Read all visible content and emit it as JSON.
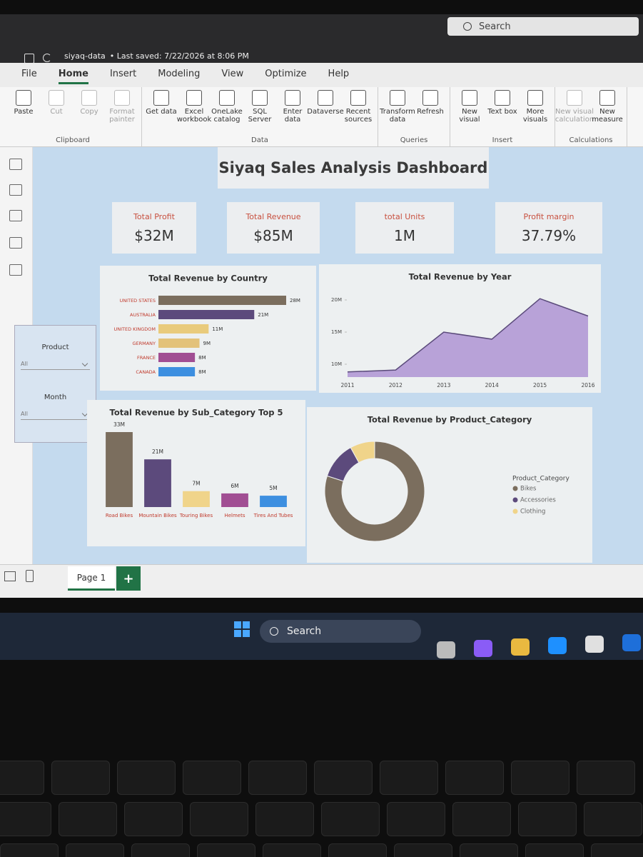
{
  "window": {
    "file_name": "siyaq-data",
    "saved": "• Last saved: 7/22/2026 at 8:06 PM",
    "search": "Search"
  },
  "ribbon": {
    "tabs": [
      "File",
      "Home",
      "Insert",
      "Modeling",
      "View",
      "Optimize",
      "Help"
    ],
    "active_tab": "Home",
    "groups": [
      {
        "label": "Clipboard",
        "buttons": [
          {
            "label": "Paste"
          },
          {
            "label": "Cut",
            "disabled": true
          },
          {
            "label": "Copy",
            "disabled": true
          },
          {
            "label": "Format painter",
            "disabled": true
          }
        ]
      },
      {
        "label": "Data",
        "buttons": [
          {
            "label": "Get data"
          },
          {
            "label": "Excel workbook"
          },
          {
            "label": "OneLake catalog"
          },
          {
            "label": "SQL Server"
          },
          {
            "label": "Enter data"
          },
          {
            "label": "Dataverse"
          },
          {
            "label": "Recent sources"
          }
        ]
      },
      {
        "label": "Queries",
        "buttons": [
          {
            "label": "Transform data"
          },
          {
            "label": "Refresh"
          }
        ]
      },
      {
        "label": "Insert",
        "buttons": [
          {
            "label": "New visual"
          },
          {
            "label": "Text box"
          },
          {
            "label": "More visuals"
          }
        ]
      },
      {
        "label": "Calculations",
        "buttons": [
          {
            "label": "New visual calculation",
            "disabled": true
          },
          {
            "label": "New measure"
          }
        ]
      }
    ]
  },
  "dashboard": {
    "title": "Siyaq Sales Analysis Dashboard",
    "kpis": [
      {
        "label": "Total Profit",
        "value": "$32M"
      },
      {
        "label": "Total Revenue",
        "value": "$85M"
      },
      {
        "label": "total Units",
        "value": "1M"
      },
      {
        "label": "Profit margin",
        "value": "37.79%"
      }
    ],
    "slicers": [
      {
        "label": "Product",
        "value": "All"
      },
      {
        "label": "Month",
        "value": "All"
      }
    ]
  },
  "chart_data": [
    {
      "type": "bar",
      "orientation": "horizontal",
      "title": "Total Revenue by Country",
      "categories": [
        "UNITED STATES",
        "AUSTRALIA",
        "UNITED KINGDOM",
        "GERMANY",
        "FRANCE",
        "CANADA"
      ],
      "values": [
        28,
        21,
        11,
        9,
        8,
        8
      ],
      "value_labels": [
        "28M",
        "21M",
        "11M",
        "9M",
        "8M",
        "8M"
      ],
      "colors": [
        "#7b6e5e",
        "#5c4a7c",
        "#e9cb7c",
        "#e3c27a",
        "#a14e93",
        "#3d8fe0"
      ]
    },
    {
      "type": "area",
      "title": "Total Revenue by Year",
      "categories": [
        "2011",
        "2012",
        "2013",
        "2014",
        "2015",
        "2016"
      ],
      "values": [
        8.8,
        9.1,
        15,
        13.9,
        20.2,
        17.5
      ],
      "color": "#b8a2d8",
      "line_color": "#5a4a7a",
      "ylim": [
        8,
        22
      ],
      "yticks": [
        {
          "value": 10,
          "label": "10M"
        },
        {
          "value": 15,
          "label": "15M"
        },
        {
          "value": 20,
          "label": "20M"
        }
      ]
    },
    {
      "type": "bar",
      "orientation": "vertical",
      "title": "Total Revenue by Sub_Category Top 5",
      "categories": [
        "Road Bikes",
        "Mountain Bikes",
        "Touring Bikes",
        "Helmets",
        "Tires And Tubes"
      ],
      "values": [
        33,
        21,
        7,
        6,
        5
      ],
      "value_labels": [
        "33M",
        "21M",
        "7M",
        "6M",
        "5M"
      ],
      "colors": [
        "#7b6e5e",
        "#5c4a7c",
        "#f0d48a",
        "#a14e93",
        "#3d8fe0"
      ]
    },
    {
      "type": "donut",
      "title": "Total Revenue by Product_Category",
      "legend_title": "Product_Category",
      "categories": [
        "Bikes",
        "Accessories",
        "Clothing"
      ],
      "values": [
        80,
        12,
        8
      ],
      "colors": [
        "#7b6e5e",
        "#5c4a7c",
        "#f0d48a"
      ]
    }
  ],
  "pages": {
    "tabs": [
      "Page 1"
    ],
    "add": "+"
  },
  "taskbar": {
    "search": "Search"
  }
}
